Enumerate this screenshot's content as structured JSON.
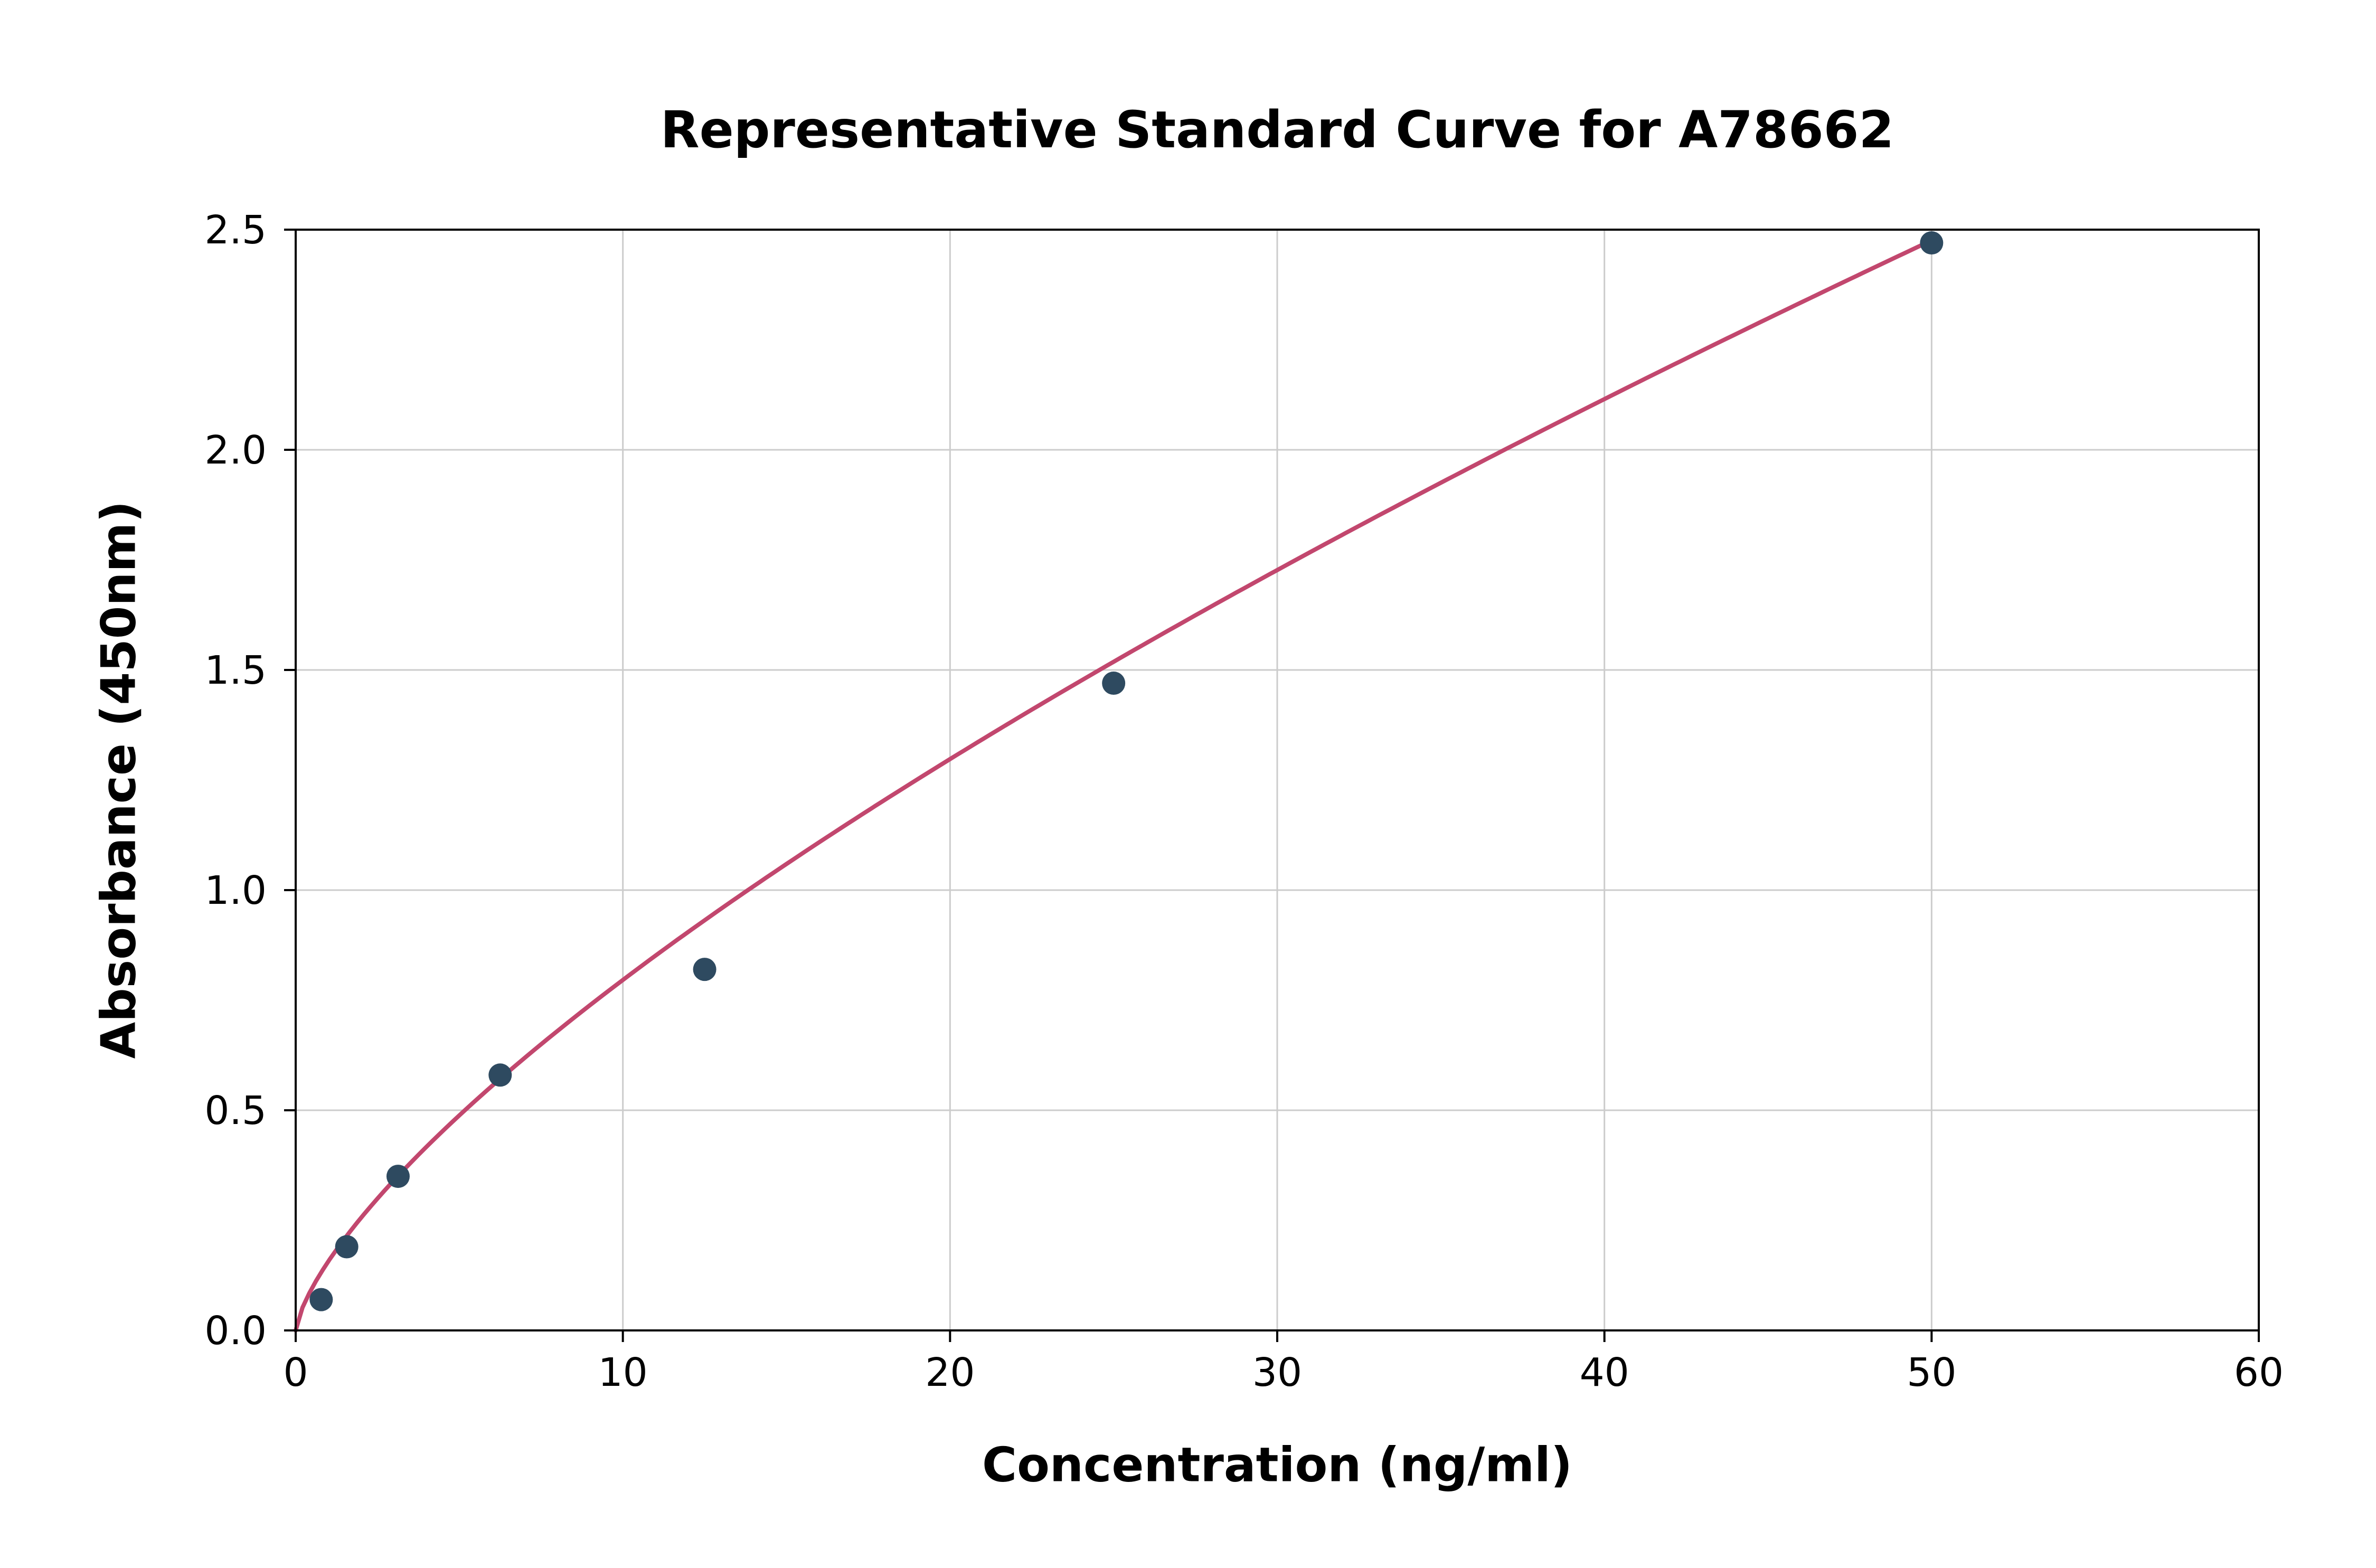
{
  "chart_data": {
    "type": "scatter",
    "title": "Representative Standard Curve for A78662",
    "xlabel": "Concentration (ng/ml)",
    "ylabel": "Absorbance (450nm)",
    "xlim": [
      0,
      60
    ],
    "ylim": [
      0,
      2.5
    ],
    "xticks": [
      0,
      10,
      20,
      30,
      40,
      50,
      60
    ],
    "xtick_labels": [
      "0",
      "10",
      "20",
      "30",
      "40",
      "50",
      "60"
    ],
    "yticks": [
      0,
      0.5,
      1.0,
      1.5,
      2.0,
      2.5
    ],
    "ytick_labels": [
      "0.0",
      "0.5",
      "1.0",
      "1.5",
      "2.0",
      "2.5"
    ],
    "grid": true,
    "legend": "none",
    "series": [
      {
        "name": "standards",
        "type": "scatter",
        "points": [
          [
            0.78,
            0.07
          ],
          [
            1.56,
            0.19
          ],
          [
            3.13,
            0.35
          ],
          [
            6.25,
            0.58
          ],
          [
            12.5,
            0.82
          ],
          [
            25,
            1.47
          ],
          [
            50,
            2.47
          ]
        ]
      },
      {
        "name": "fit-curve",
        "type": "line",
        "fit": {
          "model": "power",
          "a": 0.157,
          "b": 0.705,
          "x_start": 0,
          "x_end": 50
        }
      }
    ],
    "colors": {
      "point_color": "#2e4a60",
      "curve_color": "#c2476e",
      "grid_color": "#cccccc",
      "axis_color": "#000000",
      "background": "#ffffff"
    }
  }
}
